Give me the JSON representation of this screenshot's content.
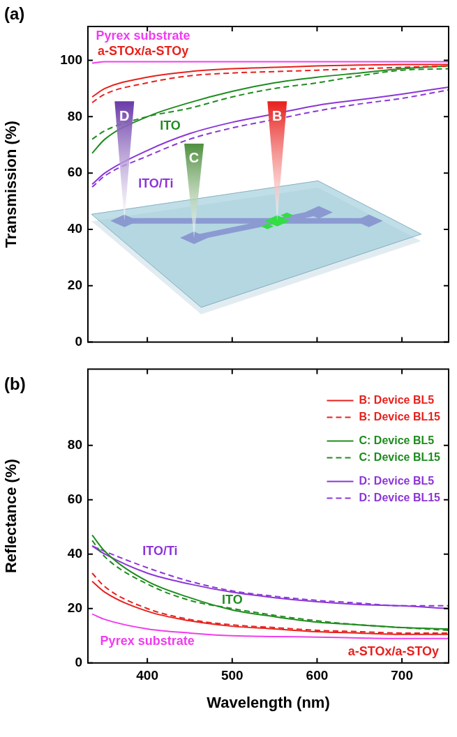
{
  "chart_data": [
    {
      "type": "line",
      "panel_label": "(a)",
      "y_label": "Transmission (%)",
      "x": [
        335,
        350,
        400,
        450,
        500,
        550,
        600,
        650,
        700,
        755
      ],
      "xlim": [
        330,
        755
      ],
      "xticks": [
        400,
        500,
        600,
        700
      ],
      "ylim": [
        0,
        112
      ],
      "yticks": [
        0,
        20,
        40,
        60,
        80,
        100
      ],
      "tick_labels": "y",
      "grid": false,
      "series": [
        {
          "color": "#f03cf0",
          "line_style": "solid",
          "values": [
            99,
            99.5,
            99.5,
            99.5,
            99.5,
            99.5,
            99.5,
            99.5,
            99.5,
            99.5
          ]
        },
        {
          "color": "#e8201c",
          "line_style": "solid",
          "values": [
            87,
            90,
            94,
            96,
            97,
            97.5,
            98,
            98.3,
            98.5,
            98.5
          ]
        },
        {
          "color": "#e8201c",
          "line_style": "dashed",
          "values": [
            85,
            88,
            92,
            94.5,
            95.5,
            96,
            96.5,
            97,
            97.5,
            98
          ]
        },
        {
          "color": "#1e8c1e",
          "line_style": "solid",
          "values": [
            67,
            72,
            80,
            85,
            89,
            92,
            94,
            95.5,
            97,
            98
          ]
        },
        {
          "color": "#1e8c1e",
          "line_style": "dashed",
          "values": [
            72,
            75,
            80,
            83,
            87,
            90,
            92,
            94.5,
            96.5,
            97
          ]
        },
        {
          "color": "#8c35d8",
          "line_style": "solid",
          "values": [
            56,
            60,
            68,
            74,
            78,
            81,
            84,
            86,
            88,
            90.5
          ]
        },
        {
          "color": "#8c35d8",
          "line_style": "dashed",
          "values": [
            55,
            59,
            66,
            72,
            76,
            79,
            82,
            84.5,
            86.5,
            89.5
          ]
        }
      ],
      "annotations": [
        {
          "text": "Pyrex substrate",
          "x": 395,
          "y": 108.5,
          "color": "#f03cf0"
        },
        {
          "text": "a-STOx/a-STOy",
          "x": 395,
          "y": 103,
          "color": "#e8201c"
        },
        {
          "text": "ITO",
          "x": 427,
          "y": 76.5,
          "color": "#1e8c1e"
        },
        {
          "text": "ITO/Ti",
          "x": 410,
          "y": 56,
          "color": "#8c35d8"
        }
      ],
      "inset_labels": [
        {
          "text": "D",
          "x": 373,
          "y": 80,
          "color": "#6a3aa8"
        },
        {
          "text": "B",
          "x": 553,
          "y": 80,
          "color": "#e8201c"
        },
        {
          "text": "C",
          "x": 455,
          "y": 65,
          "color": "#4f8f3f"
        }
      ]
    },
    {
      "type": "line",
      "panel_label": "(b)",
      "x_label": "Wavelength (nm)",
      "y_label": "Reflectance (%)",
      "x": [
        335,
        350,
        400,
        450,
        500,
        550,
        600,
        650,
        700,
        755
      ],
      "xlim": [
        330,
        755
      ],
      "xticks": [
        400,
        500,
        600,
        700
      ],
      "ylim": [
        0,
        108
      ],
      "yticks": [
        0,
        20,
        40,
        60,
        80
      ],
      "grid": false,
      "legend": "upper right",
      "series": [
        {
          "name": "B: Device BL5",
          "color": "#e8201c",
          "line_style": "solid",
          "values": [
            30,
            26,
            19,
            15.5,
            13.5,
            12.5,
            11.5,
            11,
            10.5,
            10.5
          ]
        },
        {
          "name": "B: Device BL15",
          "color": "#e8201c",
          "line_style": "dashed",
          "values": [
            33,
            28,
            20,
            16,
            14,
            13,
            12,
            11.5,
            11,
            11
          ]
        },
        {
          "name": "C: Device BL5",
          "color": "#1e8c1e",
          "line_style": "solid",
          "values": [
            47,
            41,
            30,
            24,
            19.5,
            17,
            15,
            14,
            13,
            12.5
          ]
        },
        {
          "name": "C: Device BL15",
          "color": "#1e8c1e",
          "line_style": "dashed",
          "values": [
            45,
            39,
            29,
            23,
            20,
            17.5,
            15.5,
            14,
            13,
            12
          ]
        },
        {
          "name": "D: Device BL5",
          "color": "#8c35d8",
          "line_style": "solid",
          "values": [
            43,
            40,
            33,
            29,
            26,
            24,
            22.5,
            21.5,
            21,
            20
          ]
        },
        {
          "name": "D: Device BL15",
          "color": "#8c35d8",
          "line_style": "dashed",
          "values": [
            43,
            41,
            35,
            30,
            26.5,
            24.5,
            23,
            22,
            21,
            21
          ]
        },
        {
          "color": "#f03cf0",
          "line_style": "solid",
          "values": [
            18,
            16,
            12.5,
            11,
            10,
            9.7,
            9.5,
            9.2,
            9,
            9
          ]
        }
      ],
      "annotations": [
        {
          "text": "ITO/Ti",
          "x": 415,
          "y": 41,
          "color": "#8c35d8"
        },
        {
          "text": "ITO",
          "x": 500,
          "y": 23,
          "color": "#1e8c1e"
        },
        {
          "text": "Pyrex substrate",
          "x": 400,
          "y": 8,
          "color": "#f03cf0"
        },
        {
          "text": "a-STOx/a-STOy",
          "x": 690,
          "y": 4,
          "color": "#e8201c"
        }
      ]
    }
  ]
}
